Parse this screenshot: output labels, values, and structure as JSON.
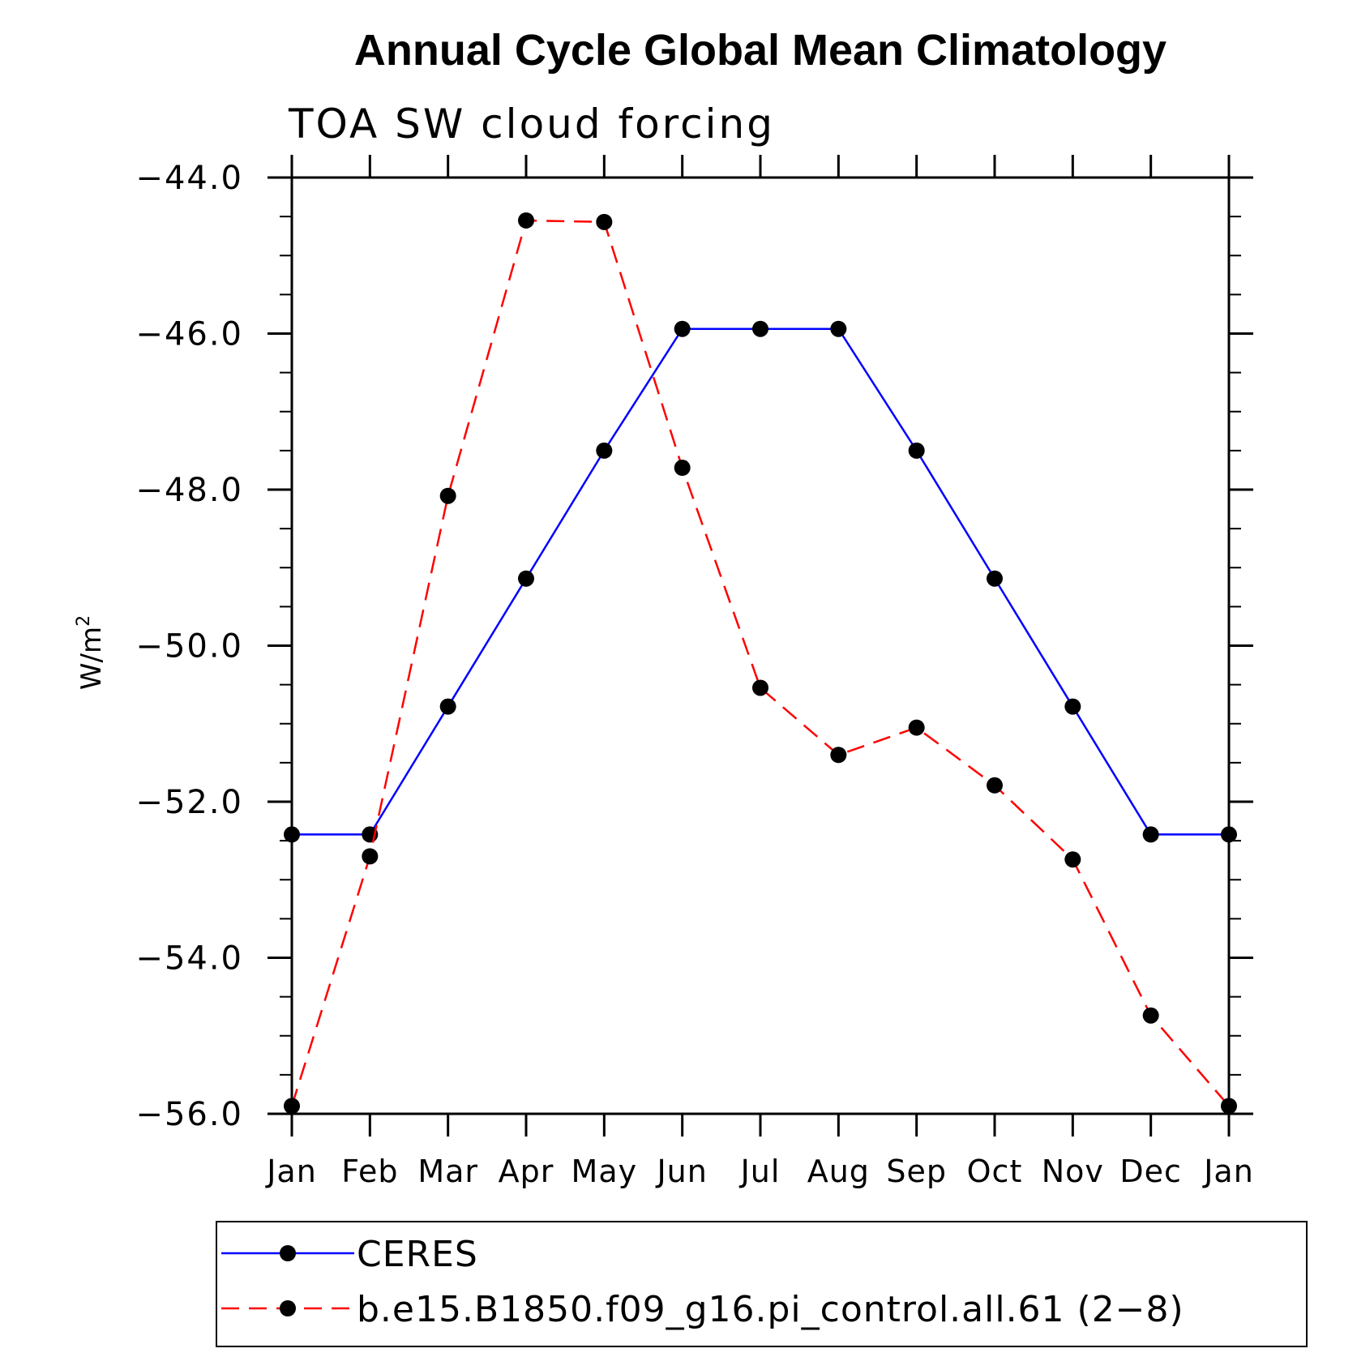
{
  "chart_data": {
    "type": "line",
    "title": "Annual Cycle Global Mean Climatology",
    "subtitle": "TOA SW cloud forcing",
    "ylabel": "W/m",
    "ylabel_superscript": "2",
    "categories": [
      "Jan",
      "Feb",
      "Mar",
      "Apr",
      "May",
      "Jun",
      "Jul",
      "Aug",
      "Sep",
      "Oct",
      "Nov",
      "Dec",
      "Jan"
    ],
    "ylim": [
      -56.0,
      -44.0
    ],
    "yticks": [
      -44.0,
      -46.0,
      -48.0,
      -50.0,
      -52.0,
      -54.0,
      -56.0
    ],
    "ytick_labels": [
      "−44.0",
      "−46.0",
      "−48.0",
      "−50.0",
      "−52.0",
      "−54.0",
      "−56.0"
    ],
    "grid": false,
    "legend_position": "bottom",
    "series": [
      {
        "name": "CERES",
        "color": "#0000ff",
        "dash": "solid",
        "values": [
          -52.42,
          -52.42,
          -50.78,
          -49.14,
          -47.5,
          -45.94,
          -45.94,
          -45.94,
          -47.5,
          -49.14,
          -50.78,
          -52.42,
          -52.42
        ]
      },
      {
        "name": "b.e15.B1850.f09_g16.pi_control.all.61 (2−8)",
        "color": "#ff0000",
        "dash": "dashed",
        "values": [
          -55.9,
          -52.7,
          -48.08,
          -44.55,
          -44.57,
          -47.72,
          -50.54,
          -51.4,
          -51.05,
          -51.79,
          -52.74,
          -54.74,
          -55.9
        ]
      }
    ]
  }
}
